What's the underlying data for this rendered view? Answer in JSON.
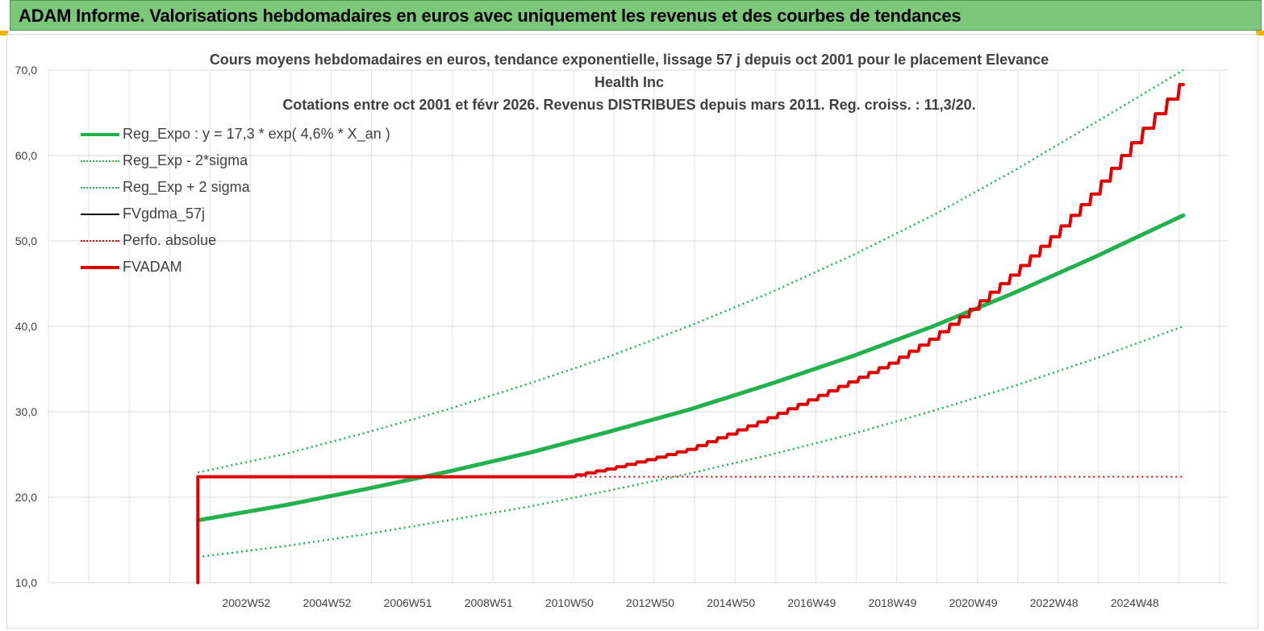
{
  "banner": {
    "title": "ADAM Informe. Valorisations hebdomadaires en euros avec uniquement les revenus et des courbes de tendances"
  },
  "chart_data": {
    "type": "line",
    "title": "Cours moyens hebdomadaires en euros, tendance exponentielle, lissage 57 j depuis oct 2001 pour le placement Elevance Health Inc",
    "subtitle": "Cotations entre oct 2001 et févr 2026. Revenus DISTRIBUES depuis mars 2011. Reg. croiss. : 11,3/20.",
    "ylim": [
      10,
      70
    ],
    "y_ticks": [
      "10,0",
      "20,0",
      "30,0",
      "40,0",
      "50,0",
      "60,0",
      "70,0"
    ],
    "x_ticks": [
      "2002W52",
      "2004W52",
      "2006W51",
      "2008W51",
      "2010W50",
      "2012W50",
      "2014W50",
      "2016W49",
      "2018W49",
      "2020W49",
      "2022W48",
      "2024W48"
    ],
    "x_tick_years": [
      2003,
      2005,
      2007,
      2009,
      2011,
      2013,
      2015,
      2017,
      2019,
      2021,
      2023,
      2025
    ],
    "xlim_years": [
      1998.1,
      2027.3
    ],
    "grid": true,
    "legend_position": "top-left",
    "series": [
      {
        "name": "Reg_Expo : y = 17,3 * exp( 4,6% *  X_an )",
        "color": "#22b14c",
        "style": "solid",
        "width": 5,
        "x": [
          2001.8,
          2004,
          2006,
          2008,
          2010,
          2012,
          2014,
          2016,
          2018,
          2020,
          2022,
          2024,
          2026.2
        ],
        "values": [
          17.3,
          19.1,
          21.0,
          23.0,
          25.2,
          27.7,
          30.3,
          33.3,
          36.5,
          40.0,
          43.9,
          48.1,
          53.0
        ]
      },
      {
        "name": "Reg_Exp - 2*sigma",
        "color": "#22b14c",
        "style": "dotted",
        "width": 2.5,
        "x": [
          2001.8,
          2004,
          2006,
          2008,
          2010,
          2012,
          2014,
          2016,
          2018,
          2020,
          2022,
          2024,
          2026.2
        ],
        "values": [
          13.0,
          14.3,
          15.7,
          17.3,
          18.9,
          20.8,
          22.8,
          25.0,
          27.4,
          30.1,
          33.0,
          36.2,
          40.0
        ]
      },
      {
        "name": "Reg_Exp + 2 sigma",
        "color": "#22b14c",
        "style": "dotted",
        "width": 2.5,
        "x": [
          2001.8,
          2004,
          2006,
          2008,
          2010,
          2012,
          2014,
          2016,
          2018,
          2020,
          2022,
          2024,
          2026.2
        ],
        "values": [
          22.9,
          25.1,
          27.6,
          30.3,
          33.3,
          36.5,
          40.1,
          44.0,
          48.3,
          53.0,
          58.2,
          63.8,
          70.0
        ]
      },
      {
        "name": "FVgdma_57j",
        "color": "#000000",
        "style": "solid",
        "width": 2,
        "x": [
          2011.0,
          2012,
          2013,
          2014,
          2015,
          2016,
          2017,
          2018,
          2019,
          2020,
          2021,
          2022,
          2023,
          2024,
          2025,
          2026.2
        ],
        "values": [
          22.4,
          23.3,
          24.4,
          25.6,
          27.4,
          29.3,
          31.4,
          33.5,
          35.7,
          38.5,
          42.0,
          46.0,
          50.5,
          55.5,
          61.5,
          68.3
        ]
      },
      {
        "name": "Perfo. absolue",
        "color": "#e00000",
        "style": "dotted",
        "width": 2,
        "x": [
          2001.8,
          2026.2
        ],
        "values": [
          22.4,
          22.4
        ]
      },
      {
        "name": "FVADAM",
        "color": "#e00000",
        "style": "solid",
        "width": 4,
        "x": [
          2001.8,
          2001.8,
          2011.0,
          2012,
          2013,
          2014,
          2015,
          2016,
          2017,
          2018,
          2019,
          2020,
          2021,
          2022,
          2023,
          2024,
          2025,
          2026.2
        ],
        "values": [
          10.0,
          22.4,
          22.4,
          23.3,
          24.4,
          25.6,
          27.4,
          29.3,
          31.4,
          33.5,
          35.7,
          38.5,
          42.0,
          46.0,
          50.5,
          55.5,
          61.5,
          68.3
        ]
      }
    ]
  }
}
